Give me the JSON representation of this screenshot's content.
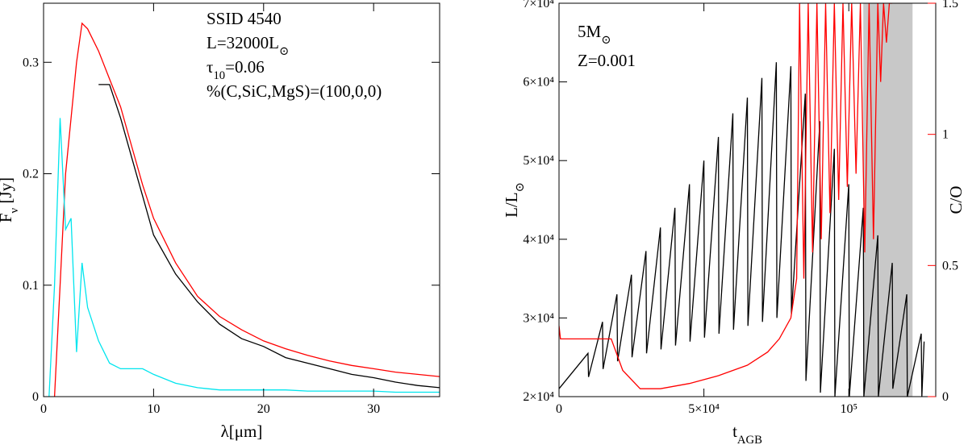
{
  "chart_data": [
    {
      "type": "line",
      "xlabel": [
        {
          "t": "λ[μm]"
        }
      ],
      "ylabel": [
        {
          "t": "F"
        },
        {
          "t": "ν",
          "sub": true
        },
        {
          "t": " [Jy]"
        }
      ],
      "annotations": [
        [
          {
            "t": "SSID 4540"
          }
        ],
        [
          {
            "t": "L=32000L"
          },
          {
            "t": "⊙",
            "sub": true
          }
        ],
        [
          {
            "t": "τ"
          },
          {
            "t": "10",
            "sub": true
          },
          {
            "t": "=0.06"
          }
        ],
        [
          {
            "t": "%(C,SiC,MgS)=(100,0,0)"
          }
        ]
      ],
      "xlim": [
        0,
        36
      ],
      "xticks": [
        0,
        10,
        20,
        30
      ],
      "ylim": [
        0,
        0.353
      ],
      "yticks": [
        0,
        0.1,
        0.2,
        0.3
      ],
      "x": [
        0.5,
        1,
        1.5,
        2,
        2.5,
        3,
        3.5,
        4,
        5,
        6,
        7,
        8,
        9,
        10,
        12,
        14,
        16,
        18,
        20,
        22,
        24,
        26,
        28,
        30,
        32,
        34,
        36
      ],
      "series": [
        {
          "color": "#ff0000",
          "values": [
            null,
            0.0,
            0.1,
            0.2,
            0.25,
            0.3,
            0.335,
            0.33,
            0.31,
            0.285,
            0.26,
            0.225,
            0.19,
            0.16,
            0.12,
            0.09,
            0.072,
            0.06,
            0.05,
            0.043,
            0.037,
            0.032,
            0.028,
            0.025,
            0.022,
            0.02,
            0.018
          ]
        },
        {
          "color": "#000000",
          "values": [
            null,
            null,
            null,
            null,
            null,
            null,
            null,
            null,
            0.28,
            0.28,
            0.25,
            0.215,
            0.18,
            0.145,
            0.11,
            0.085,
            0.065,
            0.052,
            0.045,
            0.035,
            0.03,
            0.025,
            0.02,
            0.017,
            0.013,
            0.01,
            0.008
          ]
        },
        {
          "color": "#00e5ee",
          "values": [
            0,
            0.1,
            0.25,
            0.15,
            0.16,
            0.04,
            0.12,
            0.08,
            0.05,
            0.03,
            0.025,
            0.025,
            0.025,
            0.02,
            0.012,
            0.008,
            0.006,
            0.006,
            0.006,
            0.006,
            0.005,
            0.005,
            0.005,
            0.005,
            0.004,
            0.004,
            0.004
          ]
        }
      ]
    },
    {
      "type": "line",
      "xlabel": [
        {
          "t": "t"
        },
        {
          "t": "AGB",
          "sub": true
        }
      ],
      "ylabel": [
        {
          "t": "L/L"
        },
        {
          "t": "⊙",
          "sub": true
        }
      ],
      "y2label": [
        {
          "t": "C/O"
        }
      ],
      "y2color": "#ff0000",
      "annotations": [
        [
          {
            "t": "5M"
          },
          {
            "t": "⊙",
            "sub": true
          }
        ],
        [
          {
            "t": "Z=0.001"
          }
        ]
      ],
      "shaded_x": [
        105000,
        122000
      ],
      "shade_color": "#c8c8c8",
      "xlim": [
        0,
        130000
      ],
      "xticks": [
        0,
        {
          "value": 50000,
          "label": "5×10⁴"
        },
        {
          "value": 100000,
          "label": "10⁵"
        }
      ],
      "ylim": [
        20000,
        70000
      ],
      "yticks": [
        {
          "value": 20000,
          "label": "2×10⁴"
        },
        {
          "value": 30000,
          "label": "3×10⁴"
        },
        {
          "value": 40000,
          "label": "4×10⁴"
        },
        {
          "value": 50000,
          "label": "5×10⁴"
        },
        {
          "value": 60000,
          "label": "6×10⁴"
        },
        {
          "value": 70000,
          "label": "7×10⁴"
        }
      ],
      "y2lim": [
        0,
        1.5
      ],
      "y2ticks": [
        0,
        0.5,
        1,
        1.5
      ],
      "series": [
        {
          "color": "#000000",
          "x": [
            0,
            10000,
            10200,
            15000,
            15200,
            20000,
            20200,
            25000,
            25200,
            30000,
            30200,
            35000,
            35200,
            40000,
            40200,
            45000,
            45200,
            50000,
            50200,
            55000,
            55200,
            60000,
            60200,
            65000,
            65200,
            70000,
            70200,
            75000,
            75200,
            80000,
            80200,
            85000,
            85200,
            90000,
            90200,
            95000,
            95200,
            100000,
            100200,
            105000,
            105200,
            110000,
            110200,
            115000,
            115200,
            120000,
            120200,
            125000,
            125200,
            126000
          ],
          "values": [
            21000,
            25500,
            22500,
            29500,
            23500,
            33000,
            24500,
            35500,
            25000,
            38500,
            25500,
            41500,
            26000,
            44000,
            26500,
            47000,
            27000,
            50000,
            27500,
            53000,
            28000,
            56000,
            28500,
            58000,
            29000,
            60500,
            29500,
            62500,
            30000,
            62000,
            30500,
            58500,
            22000,
            55000,
            20500,
            51500,
            20000,
            47000,
            20000,
            44000,
            20000,
            40500,
            20000,
            37000,
            21000,
            33000,
            20000,
            28000,
            20000,
            27000
          ]
        },
        {
          "color": "#ff0000",
          "axis": "y2",
          "x": [
            0,
            500,
            18000,
            22000,
            28000,
            35000,
            45000,
            55000,
            65000,
            72000,
            76000,
            80000,
            82000,
            83000,
            84500,
            86000,
            87500,
            89000,
            90500,
            92000,
            93500,
            95000,
            96500,
            98000,
            99500,
            101000,
            102500,
            104000,
            105500,
            107000,
            108500,
            110000,
            111000,
            112000,
            113000,
            114000,
            115000
          ],
          "values": [
            0.27,
            0.22,
            0.22,
            0.1,
            0.03,
            0.03,
            0.05,
            0.08,
            0.12,
            0.17,
            0.22,
            0.3,
            0.45,
            1.5,
            0.45,
            1.5,
            0.55,
            1.5,
            0.6,
            1.5,
            0.7,
            1.5,
            0.75,
            1.5,
            0.8,
            1.5,
            0.85,
            1.5,
            0.55,
            1.5,
            0.6,
            1.5,
            1.2,
            1.5,
            1.35,
            1.5,
            1.5
          ]
        }
      ]
    }
  ]
}
